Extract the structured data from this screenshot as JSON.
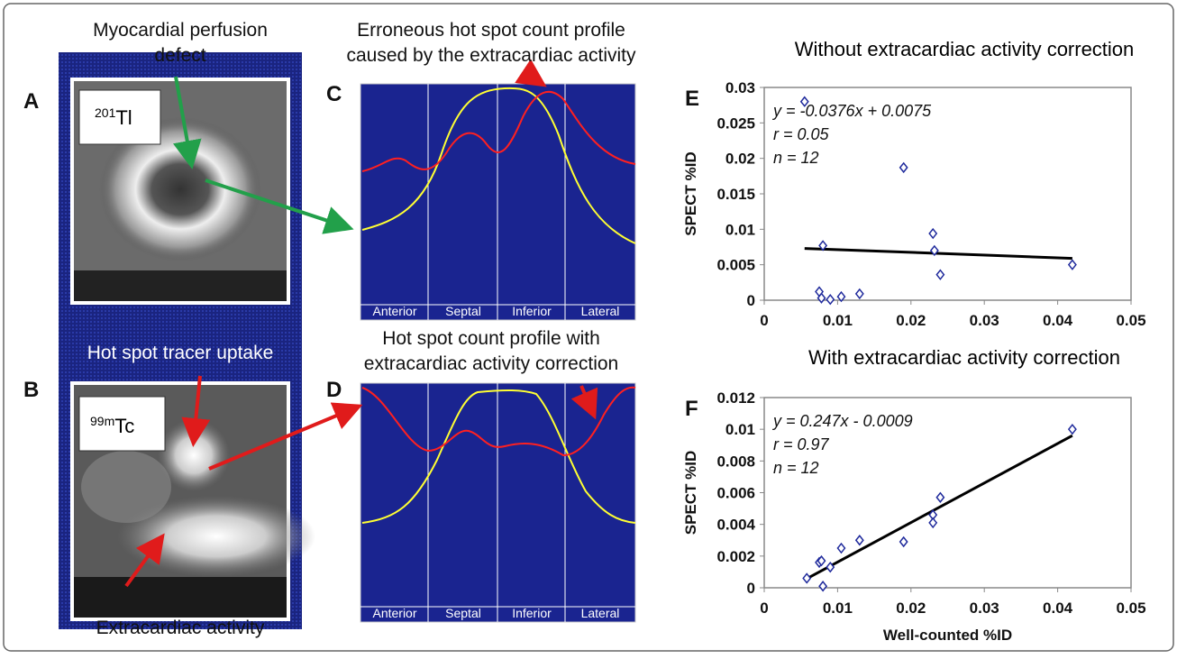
{
  "panels": {
    "A": {
      "letter": "A",
      "isotope": {
        "sup": "201",
        "text": "Tl"
      }
    },
    "B": {
      "letter": "B",
      "isotope": {
        "sup": "99m",
        "text": "Tc"
      }
    },
    "C": {
      "letter": "C",
      "axis_labels": [
        "Anterior",
        "Septal",
        "Inferior",
        "Lateral"
      ]
    },
    "D": {
      "letter": "D",
      "axis_labels": [
        "Anterior",
        "Septal",
        "Inferior",
        "Lateral"
      ]
    }
  },
  "annotations": {
    "defect": [
      "Myocardial perfusion",
      "defect"
    ],
    "erroneous": [
      "Erroneous hot spot count profile",
      "caused by the extracardiac activity"
    ],
    "hotspot": "Hot spot tracer uptake",
    "corrected": [
      "Hot spot count profile with",
      "extracardiac activity correction"
    ],
    "extracardiac": "Extracardiac activity"
  },
  "chart_data": [
    {
      "type": "scatter",
      "letter": "E",
      "title": "Without extracardiac activity correction",
      "y_label": "SPECT %ID",
      "color": "#1f2a9c",
      "x": [
        0.0055,
        0.0075,
        0.0078,
        0.008,
        0.009,
        0.0105,
        0.013,
        0.019,
        0.023,
        0.0232,
        0.024,
        0.042
      ],
      "values": [
        0.028,
        0.0012,
        0.0003,
        0.0077,
        0.0001,
        0.0005,
        0.0009,
        0.0187,
        0.0094,
        0.007,
        0.0036,
        0.005
      ],
      "trendline": {
        "x": [
          0.0055,
          0.042
        ],
        "y": [
          0.0073,
          0.0059
        ]
      },
      "equation": [
        "y = -0.0376x + 0.0075",
        "r = 0.05",
        "n = 12"
      ],
      "xlim": [
        0,
        0.05
      ],
      "xticks": [
        0,
        0.01,
        0.02,
        0.03,
        0.04,
        0.05
      ],
      "ylim": [
        0,
        0.03
      ],
      "yticks": [
        0,
        0.005,
        0.01,
        0.015,
        0.02,
        0.025,
        0.03
      ]
    },
    {
      "type": "scatter",
      "letter": "F",
      "title": "With extracardiac activity correction",
      "y_label": "SPECT %ID",
      "x_label": "Well-counted %ID",
      "color": "#1f2a9c",
      "x": [
        0.0058,
        0.0075,
        0.0078,
        0.008,
        0.009,
        0.0105,
        0.013,
        0.019,
        0.023,
        0.023,
        0.024,
        0.042
      ],
      "values": [
        0.0006,
        0.0016,
        0.0017,
        0.0001,
        0.0013,
        0.0025,
        0.003,
        0.0029,
        0.0046,
        0.0041,
        0.0057,
        0.01
      ],
      "trendline": {
        "x": [
          0.0055,
          0.042
        ],
        "y": [
          0.0005,
          0.0096
        ]
      },
      "equation": [
        "y = 0.247x - 0.0009",
        "r = 0.97",
        "n = 12"
      ],
      "xlim": [
        0,
        0.05
      ],
      "xticks": [
        0,
        0.01,
        0.02,
        0.03,
        0.04,
        0.05
      ],
      "ylim": [
        0,
        0.012
      ],
      "yticks": [
        0,
        0.002,
        0.004,
        0.006,
        0.008,
        0.01,
        0.012
      ]
    }
  ]
}
